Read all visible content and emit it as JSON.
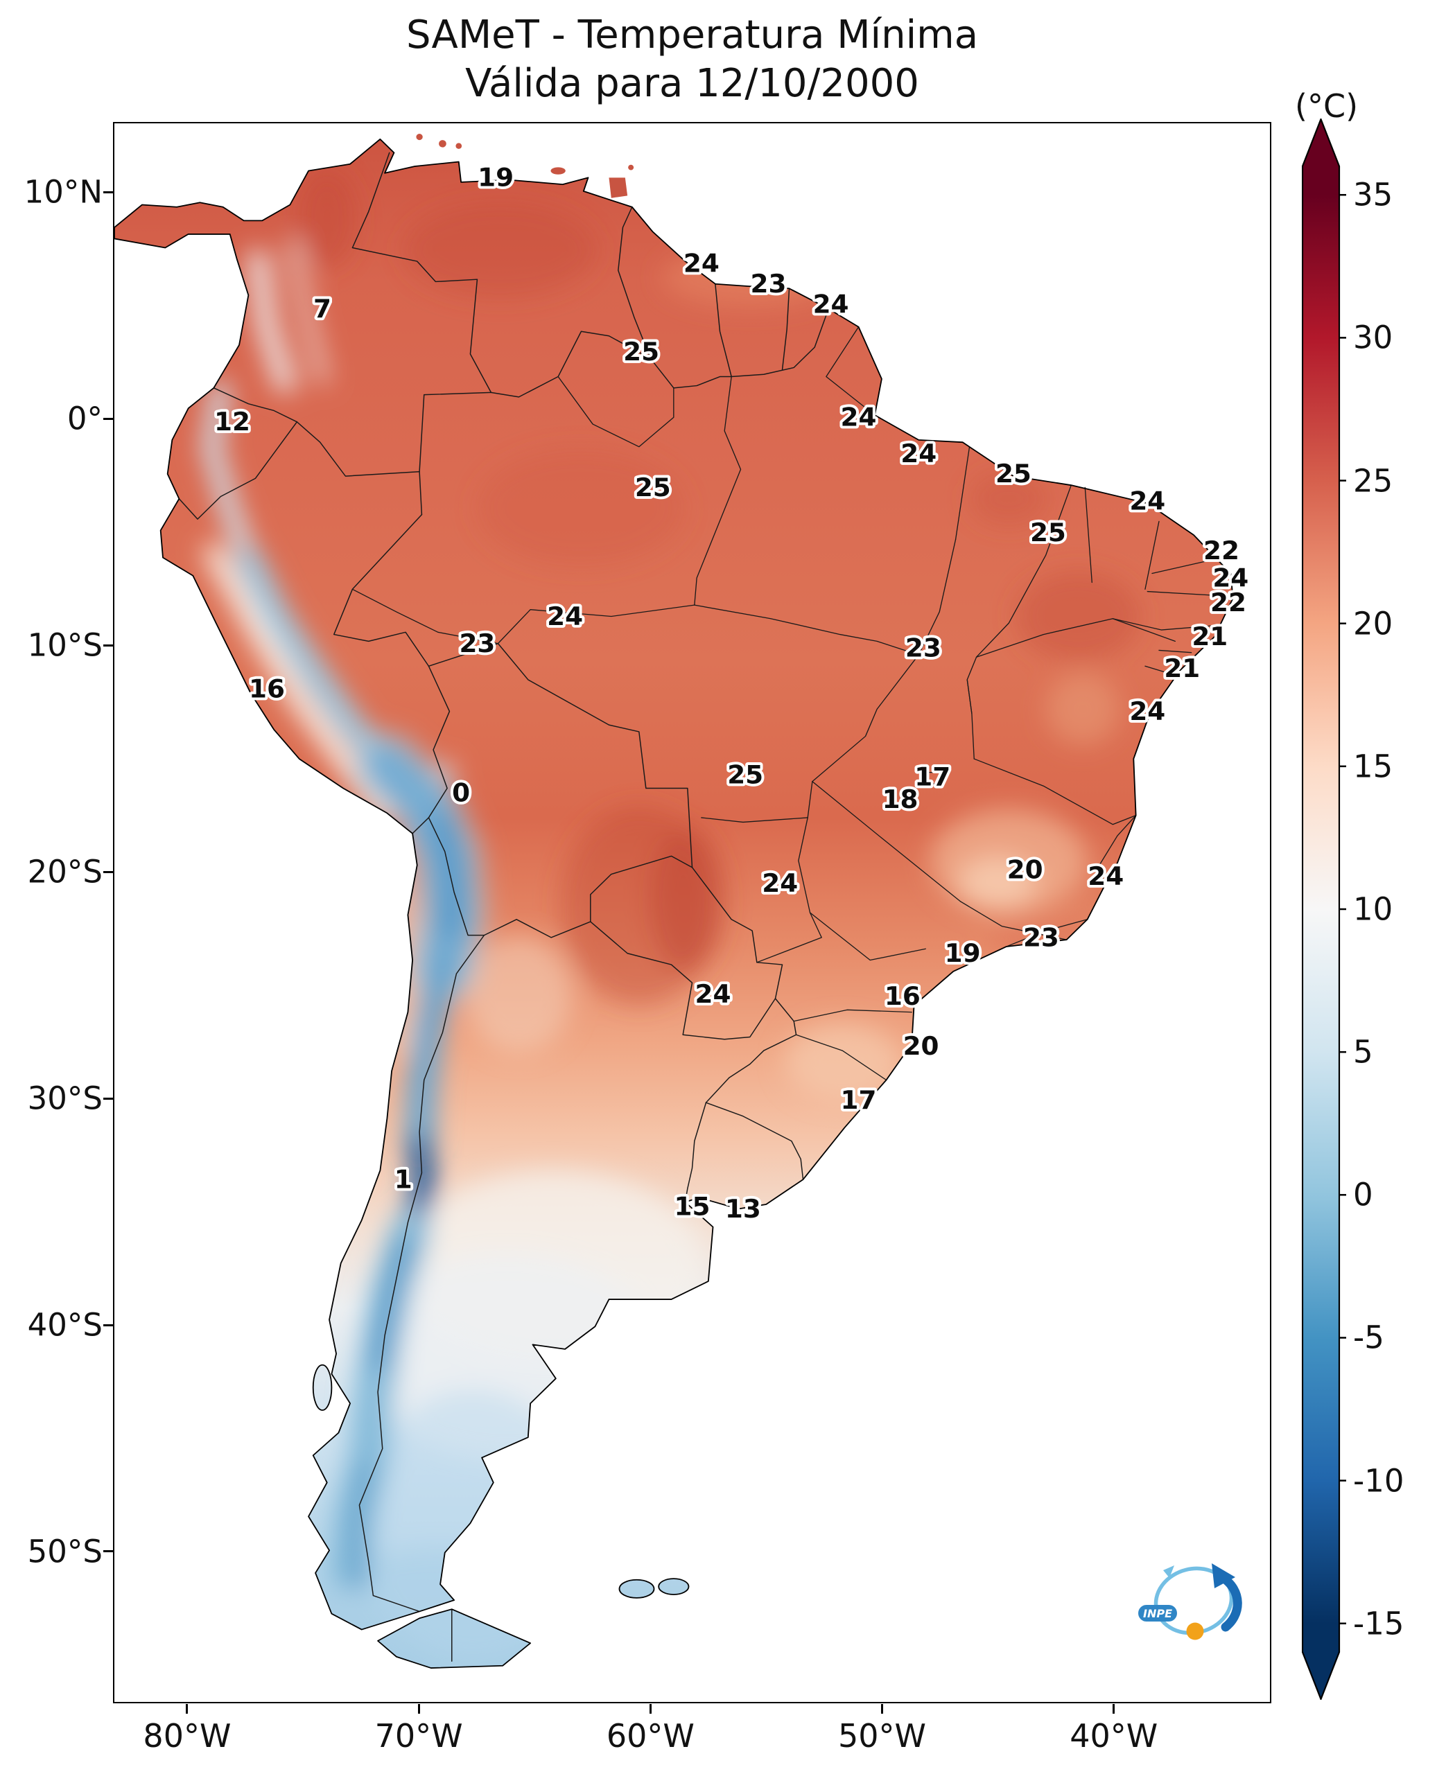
{
  "title": {
    "line1": "SAMeT - Temperatura Mínima",
    "line2": "Válida para 12/10/2000"
  },
  "colorbar": {
    "unit": "(°C)",
    "ticks": [
      35,
      30,
      25,
      20,
      15,
      10,
      5,
      0,
      -5,
      -10,
      -15
    ],
    "anchors": [
      {
        "value": 36,
        "color": "#67001f"
      },
      {
        "value": 35,
        "color": "#67001f"
      },
      {
        "value": 30,
        "color": "#b2182b"
      },
      {
        "value": 25,
        "color": "#d6604d"
      },
      {
        "value": 20,
        "color": "#f4a582"
      },
      {
        "value": 15,
        "color": "#fddbc7"
      },
      {
        "value": 10,
        "color": "#f7f7f7"
      },
      {
        "value": 5,
        "color": "#d1e5f0"
      },
      {
        "value": 0,
        "color": "#92c5de"
      },
      {
        "value": -5,
        "color": "#4393c3"
      },
      {
        "value": -10,
        "color": "#2166ac"
      },
      {
        "value": -15,
        "color": "#053061"
      },
      {
        "value": -16,
        "color": "#053061"
      }
    ],
    "extend_colors": {
      "above": "#67001f",
      "below": "#053061"
    }
  },
  "axes": {
    "lat_ticks": [
      {
        "lat": 10,
        "label": "10°N"
      },
      {
        "lat": 0,
        "label": "0°"
      },
      {
        "lat": -10,
        "label": "10°S"
      },
      {
        "lat": -20,
        "label": "20°S"
      },
      {
        "lat": -30,
        "label": "30°S"
      },
      {
        "lat": -40,
        "label": "40°S"
      },
      {
        "lat": -50,
        "label": "50°S"
      }
    ],
    "lon_ticks": [
      {
        "lon": -80,
        "label": "80°W"
      },
      {
        "lon": -70,
        "label": "70°W"
      },
      {
        "lon": -60,
        "label": "60°W"
      },
      {
        "lon": -50,
        "label": "50°W"
      },
      {
        "lon": -40,
        "label": "40°W"
      }
    ]
  },
  "map": {
    "extent": {
      "lon_min": -83.2,
      "lon_max": -33.2,
      "lat_min": -56.7,
      "lat_max": 13.1
    },
    "labels": [
      {
        "value": 19,
        "lon": -66.7,
        "lat": 10.7
      },
      {
        "value": 7,
        "lon": -74.2,
        "lat": 4.9
      },
      {
        "value": 24,
        "lon": -57.8,
        "lat": 6.9
      },
      {
        "value": 23,
        "lon": -54.9,
        "lat": 6.0
      },
      {
        "value": 24,
        "lon": -52.2,
        "lat": 5.1
      },
      {
        "value": 25,
        "lon": -60.4,
        "lat": 3.0
      },
      {
        "value": 12,
        "lon": -78.1,
        "lat": -0.1
      },
      {
        "value": 24,
        "lon": -51.0,
        "lat": 0.1
      },
      {
        "value": 24,
        "lon": -48.4,
        "lat": -1.5
      },
      {
        "value": 25,
        "lon": -59.9,
        "lat": -3.0
      },
      {
        "value": 25,
        "lon": -44.3,
        "lat": -2.4
      },
      {
        "value": 25,
        "lon": -42.8,
        "lat": -5.0
      },
      {
        "value": 24,
        "lon": -38.5,
        "lat": -3.6
      },
      {
        "value": 22,
        "lon": -35.3,
        "lat": -5.8
      },
      {
        "value": 24,
        "lon": -34.9,
        "lat": -7.0
      },
      {
        "value": 22,
        "lon": -35.0,
        "lat": -8.1
      },
      {
        "value": 21,
        "lon": -35.8,
        "lat": -9.6
      },
      {
        "value": 21,
        "lon": -37.0,
        "lat": -11.0
      },
      {
        "value": 24,
        "lon": -38.5,
        "lat": -12.9
      },
      {
        "value": 24,
        "lon": -63.7,
        "lat": -8.7
      },
      {
        "value": 23,
        "lon": -67.5,
        "lat": -9.9
      },
      {
        "value": 23,
        "lon": -48.2,
        "lat": -10.1
      },
      {
        "value": 16,
        "lon": -76.6,
        "lat": -11.9
      },
      {
        "value": 0,
        "lon": -68.2,
        "lat": -16.5
      },
      {
        "value": 25,
        "lon": -55.9,
        "lat": -15.7
      },
      {
        "value": 17,
        "lon": -47.8,
        "lat": -15.8
      },
      {
        "value": 18,
        "lon": -49.2,
        "lat": -16.8
      },
      {
        "value": 20,
        "lon": -43.8,
        "lat": -19.9
      },
      {
        "value": 24,
        "lon": -40.3,
        "lat": -20.2
      },
      {
        "value": 24,
        "lon": -54.4,
        "lat": -20.5
      },
      {
        "value": 23,
        "lon": -43.1,
        "lat": -22.9
      },
      {
        "value": 19,
        "lon": -46.5,
        "lat": -23.6
      },
      {
        "value": 24,
        "lon": -57.3,
        "lat": -25.4
      },
      {
        "value": 16,
        "lon": -49.1,
        "lat": -25.5
      },
      {
        "value": 20,
        "lon": -48.3,
        "lat": -27.7
      },
      {
        "value": 17,
        "lon": -51.0,
        "lat": -30.1
      },
      {
        "value": 1,
        "lon": -70.7,
        "lat": -33.6
      },
      {
        "value": 15,
        "lon": -58.2,
        "lat": -34.8
      },
      {
        "value": 13,
        "lon": -56.0,
        "lat": -34.9
      }
    ]
  },
  "logo": {
    "text": "INPE"
  }
}
